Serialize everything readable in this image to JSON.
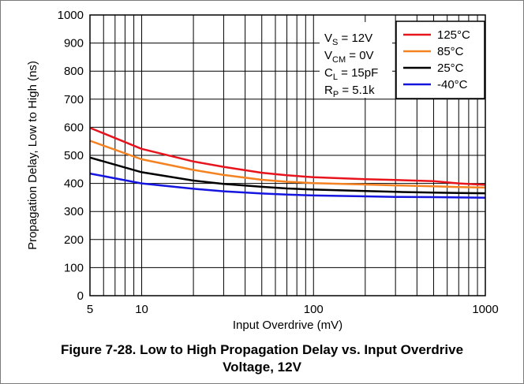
{
  "chart_data": {
    "type": "line",
    "xscale": "log",
    "xlim": [
      5,
      1000
    ],
    "ylim": [
      0,
      1000
    ],
    "grid": true,
    "xlabel": "Input Overdrive (mV)",
    "ylabel": "Propagation Delay, Low to High (ns)",
    "xticks": [
      5,
      10,
      100,
      1000
    ],
    "yticks": [
      0,
      100,
      200,
      300,
      400,
      500,
      600,
      700,
      800,
      900,
      1000
    ],
    "x": [
      5,
      10,
      20,
      30,
      50,
      70,
      100,
      200,
      300,
      500,
      700,
      1000
    ],
    "series": [
      {
        "name": "125°C",
        "color": "#e8141d",
        "values": [
          598,
          523,
          478,
          459,
          438,
          429,
          422,
          415,
          412,
          408,
          400,
          395
        ]
      },
      {
        "name": "85°C",
        "color": "#f58220",
        "values": [
          552,
          486,
          448,
          430,
          413,
          406,
          401,
          396,
          393,
          390,
          387,
          385
        ]
      },
      {
        "name": "25°C",
        "color": "#000000",
        "values": [
          492,
          440,
          410,
          398,
          388,
          382,
          378,
          373,
          370,
          367,
          366,
          365
        ]
      },
      {
        "name": "-40°C",
        "color": "#1515e0",
        "values": [
          435,
          400,
          381,
          372,
          364,
          360,
          357,
          354,
          352,
          351,
          350,
          349
        ]
      }
    ],
    "legend_position": "top-right",
    "conditions": [
      {
        "main": "V",
        "sub": "S",
        "rest": " = 12V"
      },
      {
        "main": "V",
        "sub": "CM",
        "rest": " = 0V"
      },
      {
        "main": "C",
        "sub": "L",
        "rest": " = 15pF"
      },
      {
        "main": "R",
        "sub": "P",
        "rest": " = 5.1k"
      }
    ]
  },
  "caption": {
    "line1": "Figure 7-28. Low to High Propagation Delay vs. Input Overdrive",
    "line2": "Voltage, 12V"
  }
}
